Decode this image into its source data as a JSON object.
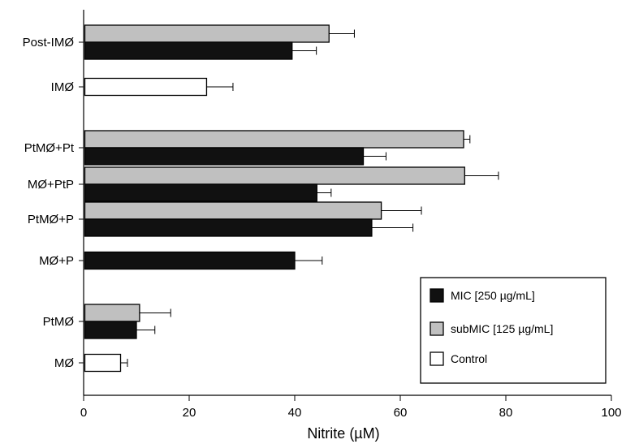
{
  "chart_data": {
    "type": "bar",
    "orientation": "horizontal",
    "xlabel": "Nitrite (µM)",
    "xlim": [
      0,
      100
    ],
    "xticks": [
      0,
      20,
      40,
      60,
      80,
      100
    ],
    "grid": false,
    "legend_position": "bottom-right",
    "series": [
      {
        "name": "MIC [250 µg/mL]",
        "color": "#111111"
      },
      {
        "name": "subMIC [125 µg/mL]",
        "color": "#c0c0c0"
      },
      {
        "name": "Control",
        "color": "#ffffff"
      }
    ],
    "categories": [
      {
        "label": "Post-IMØ",
        "bars": [
          {
            "series": "subMIC [125 µg/mL]",
            "value": 46.5,
            "error": 4.8
          },
          {
            "series": "MIC [250 µg/mL]",
            "value": 39.5,
            "error": 4.6
          }
        ]
      },
      {
        "label": "IMØ",
        "bars": [
          {
            "series": "Control",
            "value": 23.3,
            "error": 5.0
          }
        ]
      },
      {
        "label": "PtMØ+Pt",
        "bars": [
          {
            "series": "subMIC [125 µg/mL]",
            "value": 72.0,
            "error": 1.2
          },
          {
            "series": "MIC [250 µg/mL]",
            "value": 53.0,
            "error": 4.3
          }
        ]
      },
      {
        "label": "MØ+PtP",
        "bars": [
          {
            "series": "subMIC [125 µg/mL]",
            "value": 72.2,
            "error": 6.4
          },
          {
            "series": "MIC [250 µg/mL]",
            "value": 44.2,
            "error": 2.7
          }
        ]
      },
      {
        "label": "PtMØ+P",
        "bars": [
          {
            "series": "subMIC [125 µg/mL]",
            "value": 56.4,
            "error": 7.6
          },
          {
            "series": "MIC [250 µg/mL]",
            "value": 54.6,
            "error": 7.8
          }
        ]
      },
      {
        "label": "MØ+P",
        "bars": [
          {
            "series": "MIC [250 µg/mL]",
            "value": 40.0,
            "error": 5.2
          }
        ]
      },
      {
        "label": "PtMØ",
        "bars": [
          {
            "series": "subMIC [125 µg/mL]",
            "value": 10.6,
            "error": 5.9
          },
          {
            "series": "MIC [250 µg/mL]",
            "value": 10.0,
            "error": 3.5
          }
        ]
      },
      {
        "label": "MØ",
        "bars": [
          {
            "series": "Control",
            "value": 7.0,
            "error": 1.3
          }
        ]
      }
    ]
  }
}
